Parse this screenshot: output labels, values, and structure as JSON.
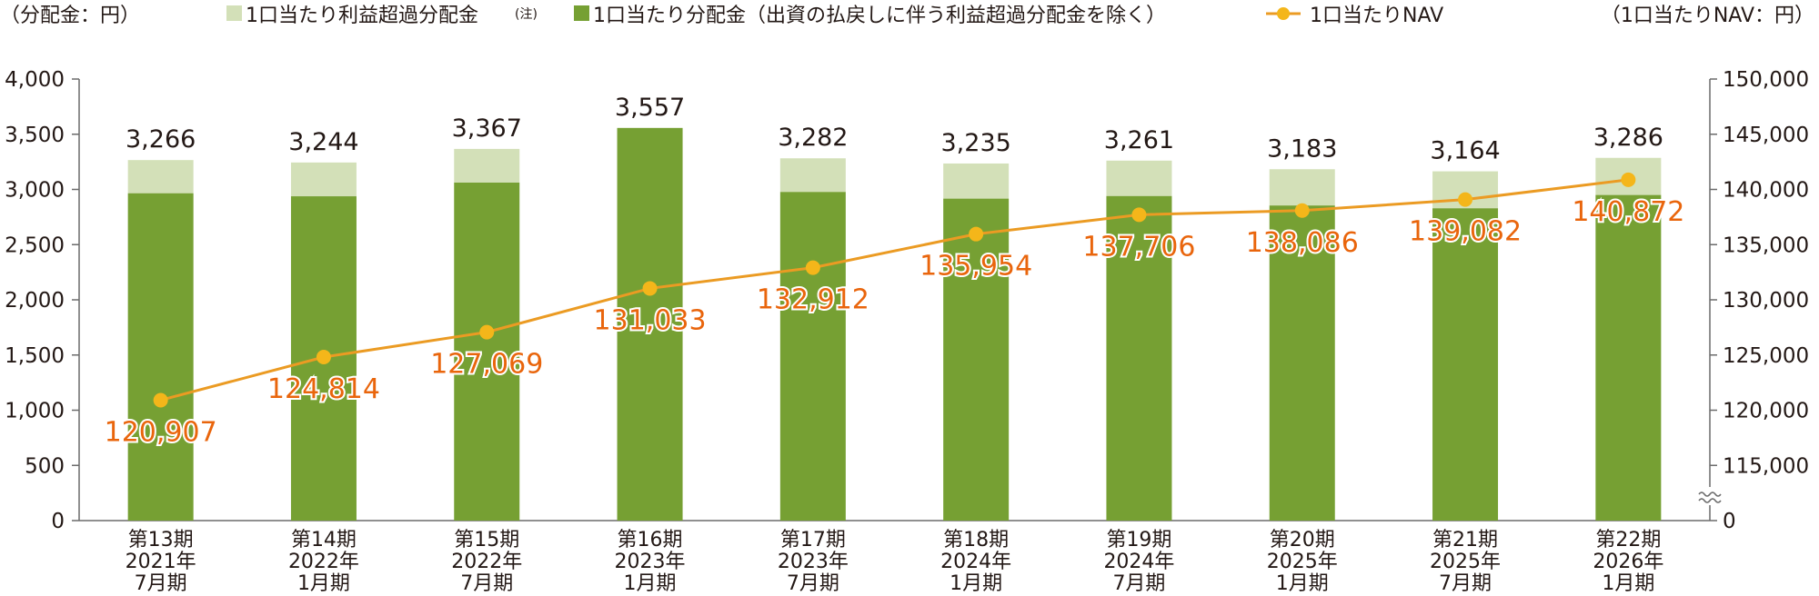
{
  "header": {
    "left_unit": "（分配金：円）",
    "right_unit": "（1口当たりNAV：円）",
    "legend": [
      {
        "label": "1口当たり利益超過分配金",
        "note": "(注)",
        "swatch": "light-square"
      },
      {
        "label": "1口当たり分配金（出資の払戻しに伴う利益超過分配金を除く）",
        "note": "",
        "swatch": "dark-square"
      },
      {
        "label": "1口当たりNAV",
        "note": "",
        "swatch": "line-marker"
      }
    ]
  },
  "chart_data": {
    "type": "bar",
    "categories": [
      [
        "第13期",
        "2021年",
        "7月期"
      ],
      [
        "第14期",
        "2022年",
        "1月期"
      ],
      [
        "第15期",
        "2022年",
        "7月期"
      ],
      [
        "第16期",
        "2023年",
        "1月期"
      ],
      [
        "第17期",
        "2023年",
        "7月期"
      ],
      [
        "第18期",
        "2024年",
        "1月期"
      ],
      [
        "第19期",
        "2024年",
        "7月期"
      ],
      [
        "第20期",
        "2025年",
        "1月期"
      ],
      [
        "第21期",
        "2025年",
        "7月期"
      ],
      [
        "第22期",
        "2026年",
        "1月期"
      ]
    ],
    "series": [
      {
        "name": "1口当たり分配金（出資の払戻しに伴う利益超過分配金を除く）",
        "values": [
          2966,
          2938,
          3063,
          3557,
          2978,
          2917,
          2941,
          2855,
          2830,
          2950
        ],
        "color": "#76a033"
      },
      {
        "name": "1口当たり利益超過分配金",
        "values": [
          300,
          306,
          304,
          0,
          304,
          318,
          320,
          328,
          334,
          336
        ],
        "color": "#d3e0b8"
      }
    ],
    "totals": [
      "3,266",
      "3,244",
      "3,367",
      "3,557",
      "3,282",
      "3,235",
      "3,261",
      "3,183",
      "3,164",
      "3,286"
    ],
    "nav": {
      "name": "1口当たりNAV",
      "values": [
        120907,
        124814,
        127069,
        131033,
        132912,
        135954,
        137706,
        138086,
        139082,
        140872
      ],
      "labels": [
        "120,907",
        "124,814",
        "127,069",
        "131,033",
        "132,912",
        "135,954",
        "137,706",
        "138,086",
        "139,082",
        "140,872"
      ],
      "line_color": "#eb9b23",
      "marker_color": "#f4b61a",
      "label_color": "#e9650c"
    },
    "y_left": {
      "ticks": [
        0,
        500,
        1000,
        1500,
        2000,
        2500,
        3000,
        3500,
        4000
      ],
      "labels": [
        "0",
        "500",
        "1,000",
        "1,500",
        "2,000",
        "2,500",
        "3,000",
        "3,500",
        "4,000"
      ],
      "ylim": [
        0,
        4000
      ]
    },
    "y_right": {
      "ticks": [
        115000,
        120000,
        125000,
        130000,
        135000,
        140000,
        145000,
        150000
      ],
      "labels": [
        "115,000",
        "120,000",
        "125,000",
        "130,000",
        "135,000",
        "140,000",
        "145,000",
        "150,000"
      ],
      "zero_label": "0",
      "ylim": [
        110000,
        150000
      ],
      "axis_break": true
    },
    "grid": false
  }
}
